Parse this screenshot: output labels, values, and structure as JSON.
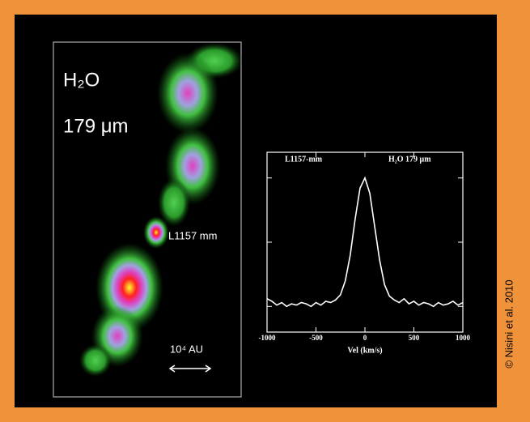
{
  "chart_data": [
    {
      "type": "map",
      "title": "H₂O",
      "subtitle": "179 μm",
      "annotations": [
        "L1157 mm",
        "10⁴ AU"
      ]
    },
    {
      "type": "line",
      "annotations": [
        "L1157-mm",
        "H₂O 179 μm"
      ],
      "xlabel": "Vel (km/s)",
      "x": [
        -1000,
        -950,
        -900,
        -850,
        -800,
        -750,
        -700,
        -650,
        -600,
        -550,
        -500,
        -450,
        -400,
        -350,
        -300,
        -250,
        -200,
        -150,
        -100,
        -50,
        0,
        50,
        100,
        150,
        200,
        250,
        300,
        350,
        400,
        450,
        500,
        550,
        600,
        650,
        700,
        750,
        800,
        850,
        900,
        950,
        1000
      ],
      "values": [
        0.06,
        0.04,
        0.01,
        0.03,
        0.0,
        0.02,
        0.01,
        0.03,
        0.02,
        0.0,
        0.03,
        0.01,
        0.04,
        0.03,
        0.05,
        0.09,
        0.2,
        0.4,
        0.68,
        0.92,
        1.0,
        0.88,
        0.62,
        0.36,
        0.17,
        0.08,
        0.05,
        0.03,
        0.06,
        0.02,
        0.04,
        0.01,
        0.03,
        0.02,
        0.0,
        0.03,
        0.01,
        0.02,
        0.04,
        0.01,
        0.03
      ],
      "color": "#ffffff",
      "xlim": [
        -1000,
        1000
      ],
      "xticks": [
        -1000,
        -500,
        0,
        500,
        1000
      ],
      "ylim": [
        -0.2,
        1.2
      ],
      "yticks": [
        0,
        0.5,
        1
      ],
      "ytick_labels": false
    }
  ],
  "credit": "© Nisini et al. 2010"
}
